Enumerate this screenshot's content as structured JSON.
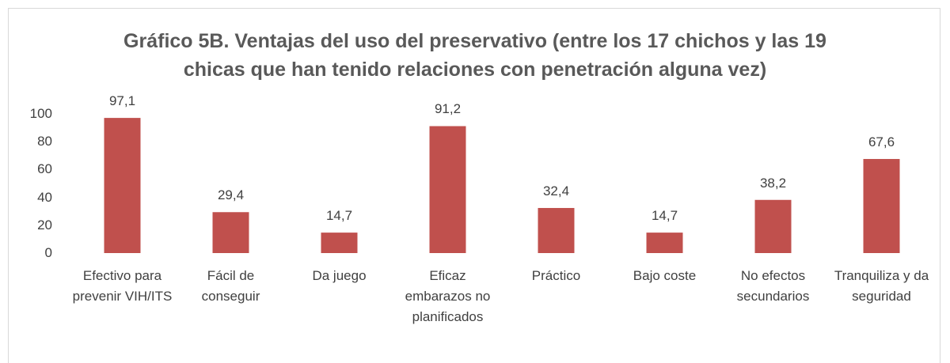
{
  "chart_data": {
    "type": "bar",
    "title": "Gráfico 5B. Ventajas del uso del preservativo (entre los 17 chichos y las 19 chicas que han tenido relaciones con penetración alguna vez)",
    "categories": [
      "Efectivo para prevenir VIH/ITS",
      "Fácil de conseguir",
      "Da juego",
      "Eficaz embarazos no planificados",
      "Práctico",
      "Bajo coste",
      "No efectos secundarios",
      "Tranquiliza y da seguridad"
    ],
    "values": [
      97.1,
      29.4,
      14.7,
      91.2,
      32.4,
      14.7,
      38.2,
      67.6
    ],
    "value_labels": [
      "97,1",
      "29,4",
      "14,7",
      "91,2",
      "32,4",
      "14,7",
      "38,2",
      "67,6"
    ],
    "color": "#c0504d",
    "ylim": [
      0,
      100
    ],
    "yticks": [
      0,
      20,
      40,
      60,
      80,
      100
    ],
    "grid": false
  }
}
